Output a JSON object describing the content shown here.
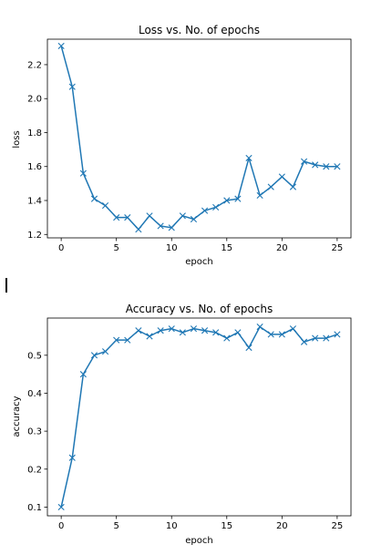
{
  "chart_data": [
    {
      "type": "line",
      "title": "Loss vs. No. of epochs",
      "xlabel": "epoch",
      "ylabel": "loss",
      "x": [
        0,
        1,
        2,
        3,
        4,
        5,
        6,
        7,
        8,
        9,
        10,
        11,
        12,
        13,
        14,
        15,
        16,
        17,
        18,
        19,
        20,
        21,
        22,
        23,
        24,
        25
      ],
      "values": [
        2.31,
        2.07,
        1.56,
        1.41,
        1.37,
        1.3,
        1.3,
        1.23,
        1.31,
        1.25,
        1.24,
        1.31,
        1.29,
        1.34,
        1.36,
        1.4,
        1.41,
        1.65,
        1.43,
        1.48,
        1.54,
        1.48,
        1.63,
        1.61,
        1.6,
        1.6
      ],
      "xlim": [
        -1.25,
        26.25
      ],
      "ylim": [
        1.18,
        2.35
      ],
      "xticks": [
        0,
        5,
        10,
        15,
        20,
        25
      ],
      "yticks": [
        1.2,
        1.4,
        1.6,
        1.8,
        2.0,
        2.2
      ],
      "marker": "x",
      "color": "#1f77b4",
      "grid": false
    },
    {
      "type": "line",
      "title": "Accuracy vs. No. of epochs",
      "xlabel": "epoch",
      "ylabel": "accuracy",
      "x": [
        0,
        1,
        2,
        3,
        4,
        5,
        6,
        7,
        8,
        9,
        10,
        11,
        12,
        13,
        14,
        15,
        16,
        17,
        18,
        19,
        20,
        21,
        22,
        23,
        24,
        25
      ],
      "values": [
        0.1,
        0.23,
        0.45,
        0.5,
        0.51,
        0.54,
        0.54,
        0.565,
        0.55,
        0.565,
        0.57,
        0.56,
        0.57,
        0.565,
        0.56,
        0.545,
        0.56,
        0.52,
        0.575,
        0.555,
        0.555,
        0.57,
        0.535,
        0.545,
        0.545,
        0.555
      ],
      "xlim": [
        -1.25,
        26.25
      ],
      "ylim": [
        0.077,
        0.598
      ],
      "xticks": [
        0,
        5,
        10,
        15,
        20,
        25
      ],
      "yticks": [
        0.1,
        0.2,
        0.3,
        0.4,
        0.5
      ],
      "marker": "x",
      "color": "#1f77b4",
      "grid": false
    }
  ]
}
